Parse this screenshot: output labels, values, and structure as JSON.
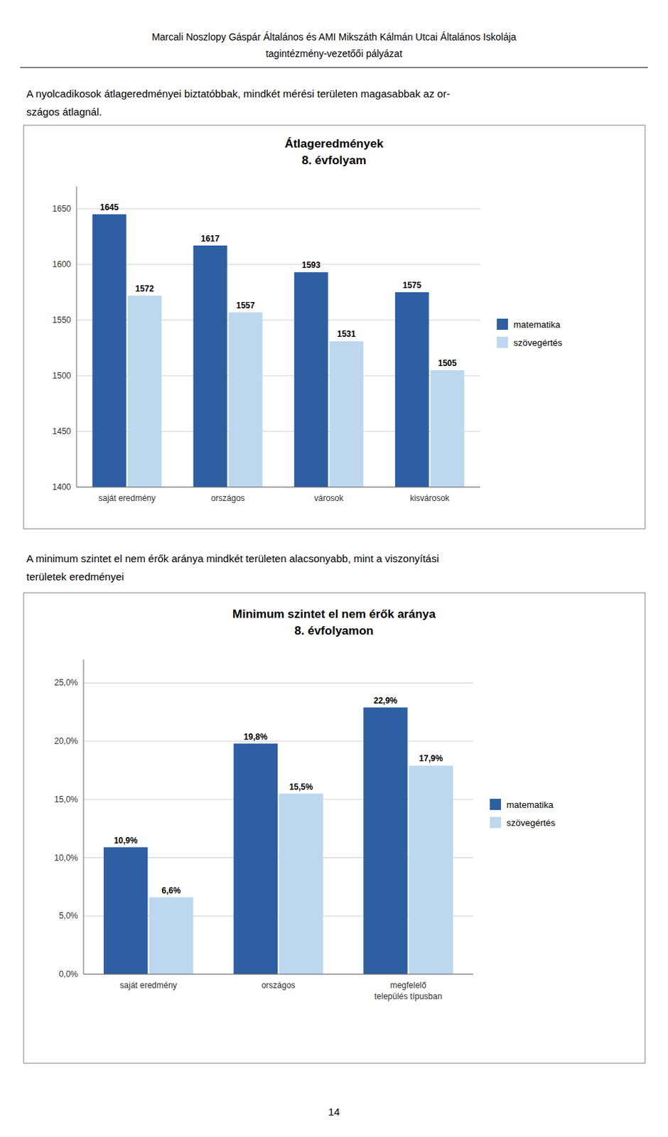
{
  "header": [
    "Marcali Noszlopy Gáspár Általános és AMI Mikszáth Kálmán Utcai Általános Iskolája",
    "tagintézmény-vezetőői pályázat"
  ],
  "texts": [
    "A nyolcadikosok átlageredményei biztatóbbak, mindkét mérési területen magasabbak az or-\nszágos átlagnál.",
    "A minimum szintet el nem érők aránya mindkét területen alacsonyabb, mint a viszonyítási\nterületek eredményei"
  ],
  "page_number": "14",
  "chart_data": [
    {
      "type": "bar",
      "title": "Átlageredmények",
      "subtitle": "8. évfolyam",
      "categories": [
        "saját eredmény",
        "országos",
        "városok",
        "kisvárosok"
      ],
      "series": [
        {
          "name": "matematika",
          "color": "#2E5FA3",
          "values": [
            1645,
            1617,
            1593,
            1575
          ]
        },
        {
          "name": "szövegértés",
          "color": "#BDD7EE",
          "values": [
            1572,
            1557,
            1531,
            1505
          ]
        }
      ],
      "ylim": [
        1400,
        1670
      ],
      "yticks": [
        1400,
        1450,
        1500,
        1550,
        1600,
        1650
      ],
      "grid": true,
      "legend": "right",
      "data_labels": true
    },
    {
      "type": "bar",
      "title": "Minimum szintet el nem érők aránya",
      "subtitle": "8. évfolyamon",
      "categories": [
        "saját eredmény",
        "országos",
        "megfelelő\ntelepülés típusban"
      ],
      "series": [
        {
          "name": "matematika",
          "color": "#2E5FA3",
          "values": [
            10.9,
            19.8,
            22.9
          ],
          "value_labels": [
            "10,9%",
            "19,8%",
            "22,9%"
          ]
        },
        {
          "name": "szövegértés",
          "color": "#BDD7EE",
          "values": [
            6.6,
            15.5,
            17.9
          ],
          "value_labels": [
            "6,6%",
            "15,5%",
            "17,9%"
          ]
        }
      ],
      "ylim": [
        0,
        27
      ],
      "yticks": [
        {
          "value": 0,
          "label": "0,0%"
        },
        {
          "value": 5,
          "label": "5,0%"
        },
        {
          "value": 10,
          "label": "10,0%"
        },
        {
          "value": 15,
          "label": "15,0%"
        },
        {
          "value": 20,
          "label": "20,0%"
        },
        {
          "value": 25,
          "label": "25,0%"
        }
      ],
      "grid": true,
      "legend": "right",
      "data_labels": true
    }
  ]
}
